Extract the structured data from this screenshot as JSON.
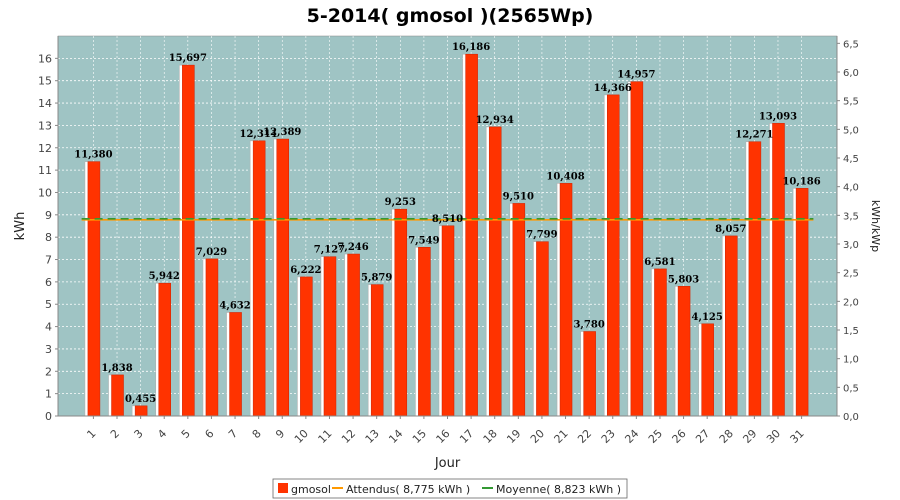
{
  "chart_data": {
    "type": "bar",
    "title": "5-2014( gmosol )(2565Wp)",
    "xlabel": "Jour",
    "ylabel": "kWh",
    "ylabel_right": "kWh/kWp",
    "ylim": [
      0,
      17
    ],
    "ylim_right": [
      0,
      6.628
    ],
    "yticks": [
      0,
      1,
      2,
      3,
      4,
      5,
      6,
      7,
      8,
      9,
      10,
      11,
      12,
      13,
      14,
      15,
      16
    ],
    "yticks_right": [
      "0,0",
      "0,5",
      "1,0",
      "1,5",
      "2,0",
      "2,5",
      "3,0",
      "3,5",
      "4,0",
      "4,5",
      "5,0",
      "5,5",
      "6,0",
      "6,5"
    ],
    "categories": [
      "1",
      "2",
      "3",
      "4",
      "5",
      "6",
      "7",
      "8",
      "9",
      "10",
      "11",
      "12",
      "13",
      "14",
      "15",
      "16",
      "17",
      "18",
      "19",
      "20",
      "21",
      "22",
      "23",
      "24",
      "25",
      "26",
      "27",
      "28",
      "29",
      "30",
      "31"
    ],
    "series": [
      {
        "name": "gmosol",
        "color": "#ff3300",
        "values": [
          11.38,
          1.838,
          0.455,
          5.942,
          15.697,
          7.029,
          4.632,
          12.311,
          12.389,
          6.222,
          7.127,
          7.246,
          5.879,
          9.253,
          7.549,
          8.51,
          16.186,
          12.934,
          9.51,
          7.799,
          10.408,
          3.78,
          14.366,
          14.957,
          6.581,
          5.803,
          4.125,
          8.057,
          12.271,
          13.093,
          10.186
        ],
        "labels": [
          "11,380",
          "1,838",
          "0,455",
          "5,942",
          "15,697",
          "7,029",
          "4,632",
          "12,311",
          "12,389",
          "6,222",
          "7,127",
          "7,246",
          "5,879",
          "9,253",
          "7,549",
          "8,510",
          "16,186",
          "12,934",
          "9,510",
          "7,799",
          "10,408",
          "3,780",
          "14,366",
          "14,957",
          "6,581",
          "5,803",
          "4,125",
          "8,057",
          "12,271",
          "13,093",
          "10,186"
        ]
      }
    ],
    "reference_lines": [
      {
        "name": "Attendus( 8,775 kWh )",
        "value": 8.775,
        "color": "#ff9900"
      },
      {
        "name": "Moyenne( 8,823 kWh )",
        "value": 8.823,
        "color": "#339933"
      }
    ],
    "legend": {
      "placement": "bottom",
      "items": [
        "gmosol",
        "Attendus( 8,775 kWh )",
        "Moyenne( 8,823 kWh )"
      ]
    },
    "plot_background": "#9fc4c4",
    "grid": true
  }
}
